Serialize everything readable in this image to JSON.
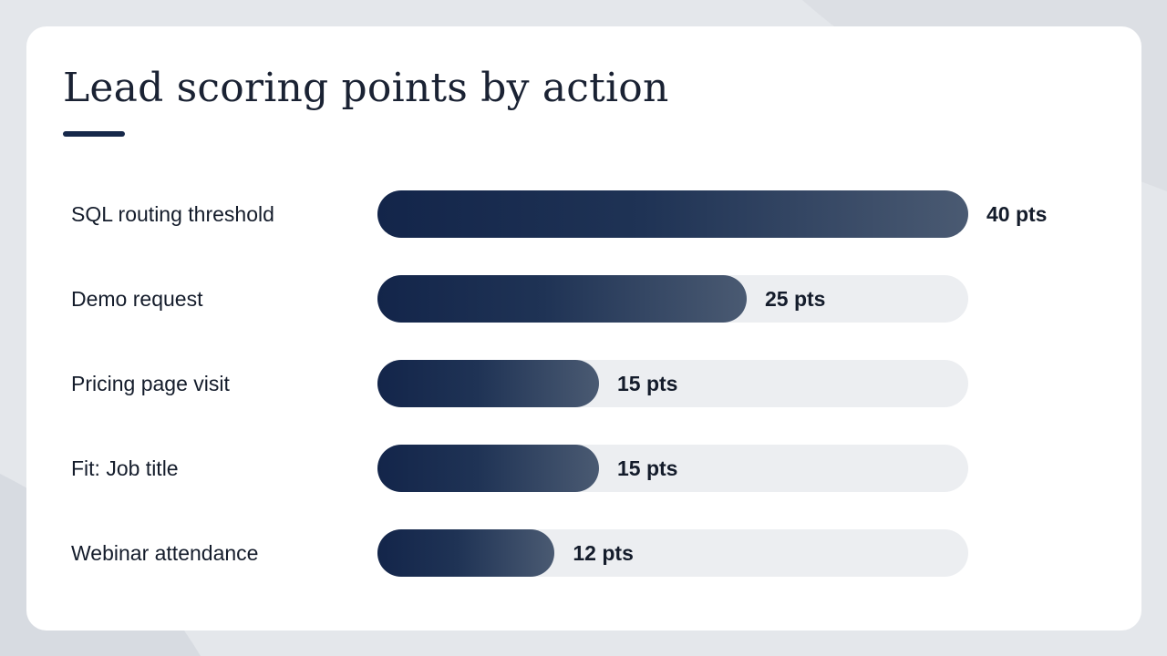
{
  "slide": {
    "title": "Lead scoring points by action"
  },
  "colors": {
    "background": "#e4e7eb",
    "card": "#ffffff",
    "bar_start": "#13254a",
    "bar_end": "#4a5a72",
    "track": "#eceef1",
    "text": "#141c2b"
  },
  "chart_data": {
    "type": "bar",
    "orientation": "horizontal",
    "title": "Lead scoring points by action",
    "xlabel": "",
    "ylabel": "",
    "xlim": [
      0,
      40
    ],
    "grid": false,
    "legend": "none",
    "unit": "pts",
    "categories": [
      "SQL routing threshold",
      "Demo request",
      "Pricing page visit",
      "Fit: Job title",
      "Webinar attendance"
    ],
    "values": [
      40,
      25,
      15,
      15,
      12
    ],
    "value_labels": [
      "40 pts",
      "25 pts",
      "15 pts",
      "15 pts",
      "12 pts"
    ]
  }
}
